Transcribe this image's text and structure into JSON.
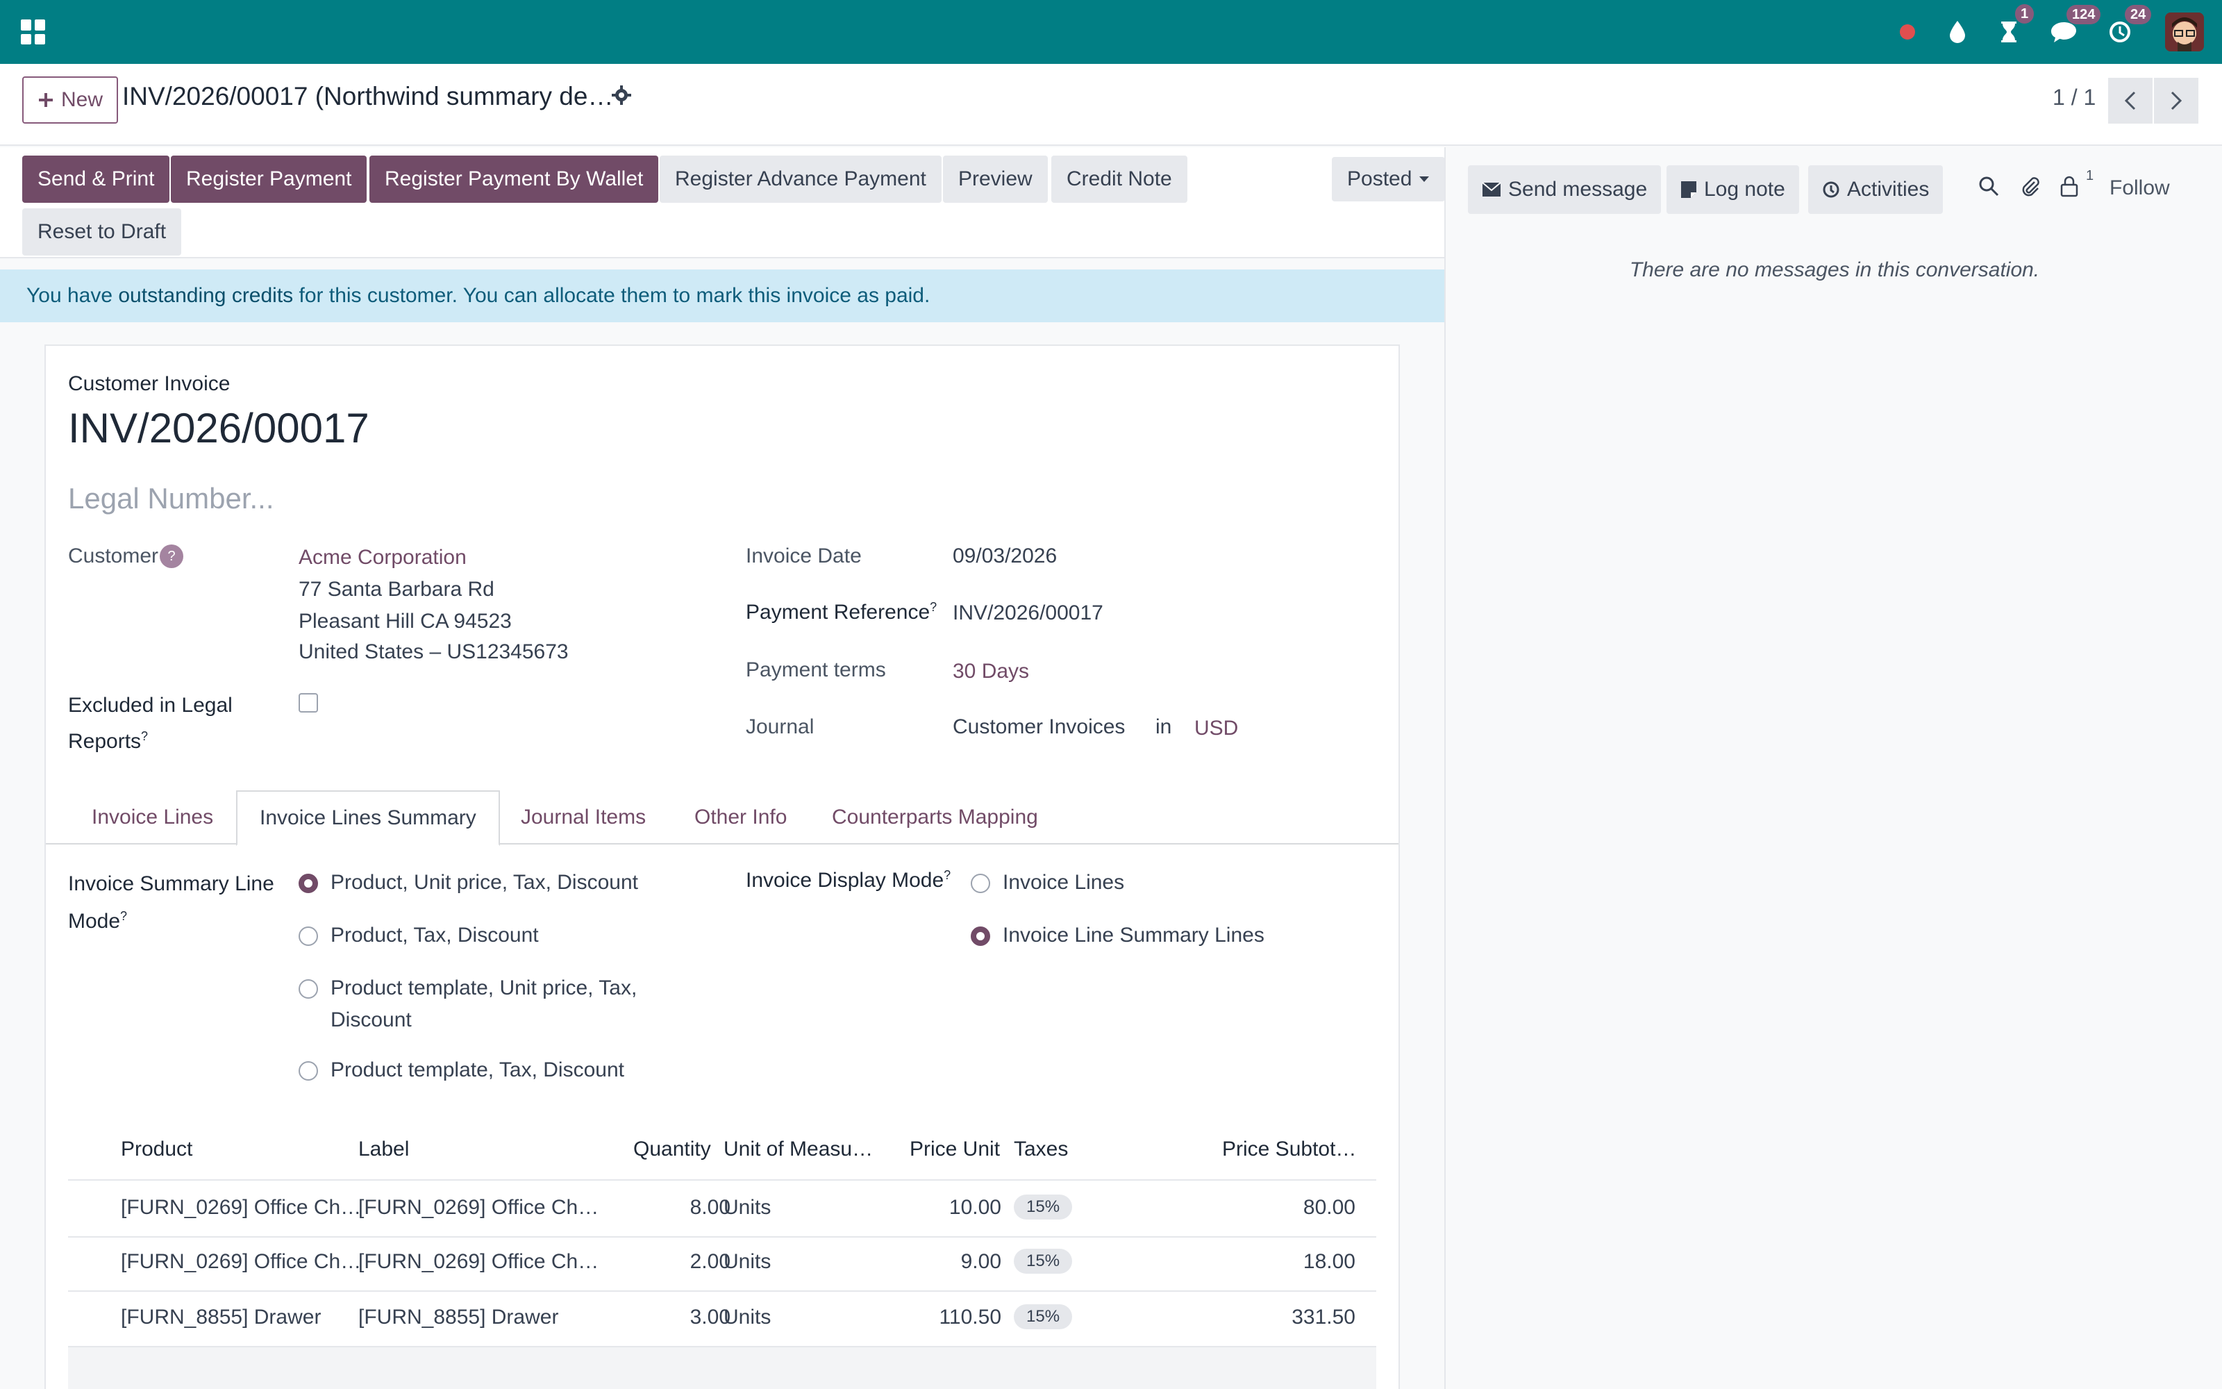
{
  "navbar": {
    "badges": {
      "activities": "1",
      "messages": "124",
      "updates": "24"
    }
  },
  "control": {
    "new_label": "New",
    "record_title": "INV/2026/00017 (Northwind summary de…",
    "pager": "1 / 1"
  },
  "statusbar": {
    "buttons": [
      "Send & Print",
      "Register Payment",
      "Register Payment By Wallet",
      "Register Advance Payment",
      "Preview",
      "Credit Note",
      "Reset to Draft"
    ],
    "status": "Posted"
  },
  "alert": {
    "pre": "You have ",
    "link": "outstanding credits",
    "post": " for this customer. You can allocate them to mark this invoice as paid."
  },
  "form": {
    "doc_type": "Customer Invoice",
    "number": "INV/2026/00017",
    "legal_placeholder": "Legal Number...",
    "customer_label": "Customer",
    "customer_name": "Acme Corporation",
    "address": [
      "77 Santa Barbara Rd",
      "Pleasant Hill CA 94523",
      "United States – US12345673"
    ],
    "excluded_label_1": "Excluded in Legal",
    "excluded_label_2": "Reports",
    "invoice_date_label": "Invoice Date",
    "invoice_date": "09/03/2026",
    "payment_ref_label": "Payment Reference",
    "payment_ref": "INV/2026/00017",
    "payment_terms_label": "Payment terms",
    "payment_terms": "30 Days",
    "journal_label": "Journal",
    "journal": "Customer Invoices",
    "journal_in": "in",
    "currency": "USD"
  },
  "tabs": [
    "Invoice Lines",
    "Invoice Lines Summary",
    "Journal Items",
    "Other Info",
    "Counterparts Mapping"
  ],
  "summary": {
    "line_mode_label_1": "Invoice Summary Line",
    "line_mode_label_2": "Mode",
    "line_modes": [
      "Product, Unit price, Tax, Discount",
      "Product, Tax, Discount",
      "Product template, Unit price, Tax,",
      "Discount",
      "Product template, Tax, Discount"
    ],
    "display_mode_label": "Invoice Display Mode",
    "display_modes": [
      "Invoice Lines",
      "Invoice Line Summary Lines"
    ]
  },
  "table": {
    "headers": [
      "Product",
      "Label",
      "Quantity",
      "Unit of Measu…",
      "Price Unit",
      "Taxes",
      "Price Subtot…"
    ],
    "rows": [
      {
        "product": "[FURN_0269] Office Ch…",
        "label": "[FURN_0269] Office Ch…",
        "qty": "8.00",
        "uom": "Units",
        "price": "10.00",
        "tax": "15%",
        "subtotal": "80.00"
      },
      {
        "product": "[FURN_0269] Office Ch…",
        "label": "[FURN_0269] Office Ch…",
        "qty": "2.00",
        "uom": "Units",
        "price": "9.00",
        "tax": "15%",
        "subtotal": "18.00"
      },
      {
        "product": "[FURN_8855] Drawer",
        "label": "[FURN_8855] Drawer",
        "qty": "3.00",
        "uom": "Units",
        "price": "110.50",
        "tax": "15%",
        "subtotal": "331.50"
      }
    ]
  },
  "chatter": {
    "send_message": "Send message",
    "log_note": "Log note",
    "activities": "Activities",
    "followers_count": "1",
    "follow": "Follow",
    "empty": "There are no messages in this conversation."
  },
  "colors": {
    "navbar": "#017e84",
    "primary": "#714b67",
    "alert_bg": "#cfeaf6"
  }
}
